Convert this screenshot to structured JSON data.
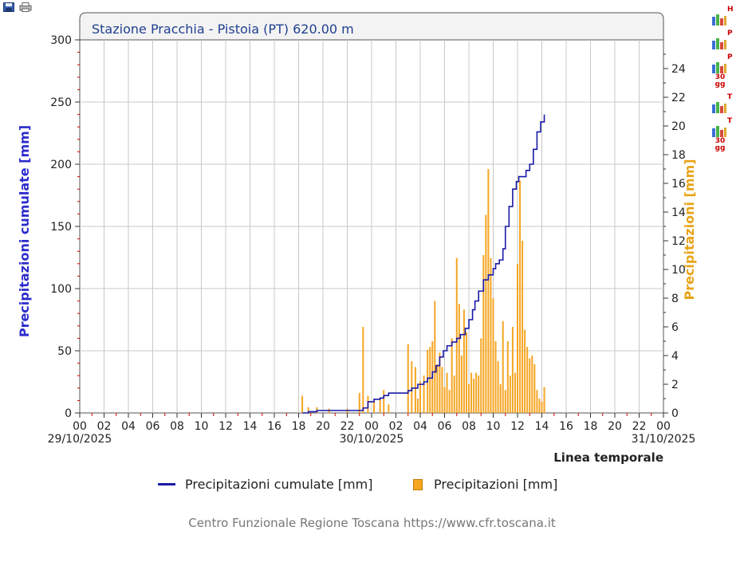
{
  "toolbar": {
    "icons": [
      "save-icon",
      "print-icon"
    ]
  },
  "side_icons": [
    {
      "name": "hydrometric-chart-icon",
      "letters": "H"
    },
    {
      "name": "pluvio-chart-icon",
      "letters": "P"
    },
    {
      "name": "pluvio-30gg-chart-icon",
      "letters": "P",
      "sub": "30\ngg"
    },
    {
      "name": "thermo-chart-icon",
      "letters": "T"
    },
    {
      "name": "thermo-30gg-chart-icon",
      "letters": "T",
      "sub": "30\ngg"
    }
  ],
  "legend": {
    "line_label": "Precipitazioni cumulate [mm]",
    "bar_label": "Precipitazioni [mm]"
  },
  "footer": "Centro Funzionale Regione Toscana https://www.cfr.toscana.it",
  "colors": {
    "line": "#1a1aa6",
    "bars": "#f5a623",
    "left_axis": "#2b2bcc",
    "right_axis": "#e8a317",
    "hour_ticks": "#cc0000"
  },
  "chart_data": {
    "type": "line+bar",
    "title": "Stazione Pracchia - Pistoia (PT) 620.00 m",
    "ylabel_left": "Precipitazioni cumulate [mm]",
    "ylabel_right": "Precipitazioni [mm]",
    "xlabel": "Linea temporale",
    "ylim_left": [
      0,
      300
    ],
    "ylim_right": [
      0,
      26
    ],
    "yticks_left": [
      0,
      50,
      100,
      150,
      200,
      250,
      300
    ],
    "yticks_right": [
      0,
      2,
      4,
      6,
      8,
      10,
      12,
      14,
      16,
      18,
      20,
      22,
      24
    ],
    "x_range_hours": [
      0,
      48
    ],
    "x_tick_labels": [
      "00",
      "02",
      "04",
      "06",
      "08",
      "10",
      "12",
      "14",
      "16",
      "18",
      "20",
      "22",
      "00",
      "02",
      "04",
      "06",
      "08",
      "10",
      "12",
      "14",
      "16",
      "18",
      "20",
      "22",
      "00"
    ],
    "date_labels": [
      {
        "hour": 0,
        "text": "29/10/2025"
      },
      {
        "hour": 24,
        "text": "30/10/2025"
      },
      {
        "hour": 48,
        "text": "31/10/2025"
      }
    ],
    "grid": true,
    "series": [
      {
        "name": "Precipitazioni cumulate [mm]",
        "type": "line",
        "axis": "left",
        "hours": [
          18.3,
          18.8,
          19.5,
          20.5,
          22.0,
          23.0,
          23.3,
          23.7,
          24.2,
          24.7,
          25.0,
          25.4,
          26.0,
          27.0,
          27.3,
          27.8,
          28.0,
          28.3,
          28.6,
          29.0,
          29.3,
          29.6,
          29.9,
          30.2,
          30.6,
          31.0,
          31.3,
          31.7,
          32.0,
          32.3,
          32.5,
          32.8,
          33.2,
          33.6,
          34.0,
          34.2,
          34.5,
          34.8,
          35.0,
          35.3,
          35.6,
          35.9,
          36.1,
          36.3,
          36.7,
          37.0,
          37.3,
          37.6,
          37.9,
          38.2
        ],
        "values": [
          0,
          1,
          2,
          2,
          2,
          2,
          4,
          9,
          11,
          12,
          14,
          16,
          16,
          18,
          20,
          23,
          23,
          25,
          28,
          33,
          38,
          45,
          50,
          54,
          57,
          60,
          63,
          68,
          75,
          83,
          90,
          98,
          107,
          111,
          116,
          120,
          123,
          132,
          150,
          166,
          180,
          186,
          190,
          190,
          195,
          200,
          212,
          226,
          234,
          240
        ]
      },
      {
        "name": "Precipitazioni [mm]",
        "type": "bar",
        "axis": "right",
        "hours": [
          18.3,
          18.8,
          19.5,
          20.5,
          22.0,
          23.0,
          23.3,
          23.7,
          24.2,
          24.7,
          25.0,
          25.4,
          27.0,
          27.3,
          27.6,
          27.8,
          28.0,
          28.3,
          28.6,
          28.8,
          29.0,
          29.2,
          29.4,
          29.6,
          29.8,
          30.0,
          30.2,
          30.4,
          30.6,
          30.8,
          31.0,
          31.2,
          31.4,
          31.6,
          31.8,
          32.0,
          32.2,
          32.4,
          32.6,
          32.8,
          33.0,
          33.2,
          33.4,
          33.6,
          33.8,
          34.0,
          34.2,
          34.4,
          34.6,
          34.8,
          35.0,
          35.2,
          35.4,
          35.6,
          35.8,
          36.0,
          36.2,
          36.4,
          36.6,
          36.8,
          37.0,
          37.2,
          37.4,
          37.6,
          37.8,
          38.0,
          38.2
        ],
        "values": [
          1.2,
          0.4,
          0.4,
          0.3,
          0.3,
          1.4,
          6.0,
          1.2,
          0.8,
          1.0,
          1.6,
          0.6,
          4.8,
          3.6,
          3.2,
          1.0,
          2.2,
          2.6,
          4.4,
          4.6,
          5.0,
          7.8,
          3.4,
          4.2,
          3.2,
          1.8,
          2.8,
          1.6,
          5.2,
          2.6,
          10.8,
          7.6,
          4.0,
          7.2,
          5.6,
          2.0,
          2.8,
          2.4,
          2.8,
          2.6,
          5.2,
          11.0,
          13.8,
          17.0,
          10.8,
          8.0,
          5.0,
          3.6,
          2.0,
          6.4,
          1.6,
          5.0,
          2.6,
          6.0,
          2.8,
          10.4,
          16.2,
          12.0,
          5.8,
          4.6,
          3.8,
          4.0,
          3.4,
          1.6,
          1.0,
          0.8,
          1.8
        ]
      }
    ]
  }
}
